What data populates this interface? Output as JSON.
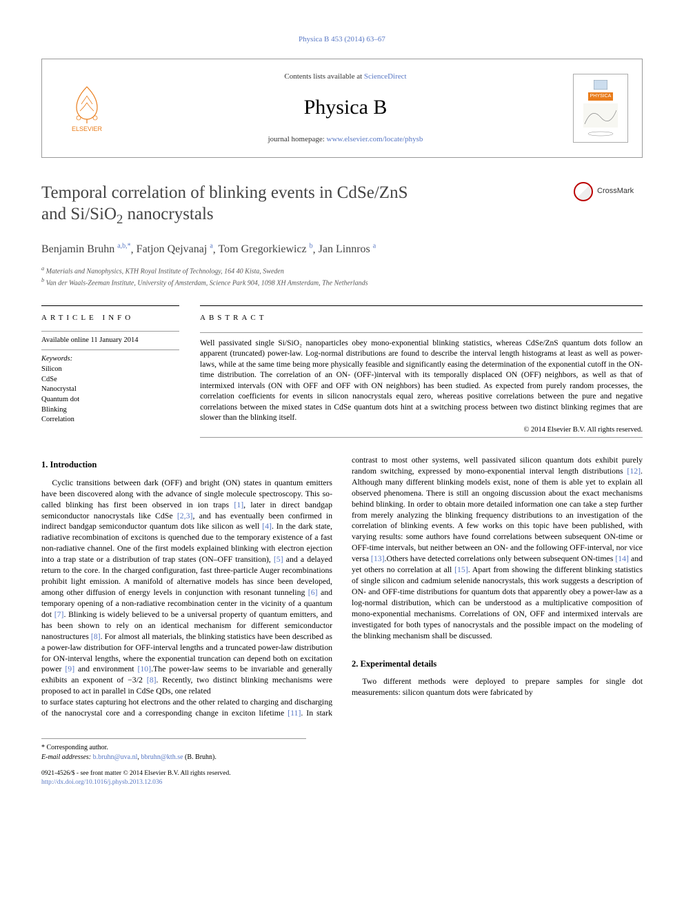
{
  "top_link": {
    "text": "Physica B 453 (2014) 63–67",
    "color": "#5978c4"
  },
  "header": {
    "contents_prefix": "Contents lists available at ",
    "contents_link": "ScienceDirect",
    "journal_name": "Physica B",
    "homepage_prefix": "journal homepage: ",
    "homepage_link": "www.elsevier.com/locate/physb",
    "publisher": "ELSEVIER",
    "cover_badge": "PHYSICA"
  },
  "crossmark_label": "CrossMark",
  "title_lines": [
    "Temporal correlation of blinking events in CdSe/ZnS",
    "and Si/SiO"
  ],
  "title_sub": "2",
  "title_suffix": " nanocrystals",
  "authors_html": "Benjamin Bruhn",
  "authors": [
    {
      "name": "Benjamin Bruhn",
      "sup": "a,b,",
      "ast": "*"
    },
    {
      "name": "Fatjon Qejvanaj",
      "sup": "a"
    },
    {
      "name": "Tom Gregorkiewicz",
      "sup": "b"
    },
    {
      "name": "Jan Linnros",
      "sup": "a"
    }
  ],
  "affiliations": [
    {
      "sup": "a",
      "text": "Materials and Nanophysics, KTH Royal Institute of Technology, 164 40 Kista, Sweden"
    },
    {
      "sup": "b",
      "text": "Van der Waals-Zeeman Institute, University of Amsterdam, Science Park 904, 1098 XH Amsterdam, The Netherlands"
    }
  ],
  "article_info": {
    "heading": "ARTICLE INFO",
    "available": "Available online 11 January 2014",
    "kw_label": "Keywords:",
    "keywords": [
      "Silicon",
      "CdSe",
      "Nanocrystal",
      "Quantum dot",
      "Blinking",
      "Correlation"
    ]
  },
  "abstract": {
    "heading": "ABSTRACT",
    "text": "Well passivated single Si/SiO₂ nanoparticles obey mono-exponential blinking statistics, whereas CdSe/ZnS quantum dots follow an apparent (truncated) power-law. Log-normal distributions are found to describe the interval length histograms at least as well as power-laws, while at the same time being more physically feasible and significantly easing the determination of the exponential cutoff in the ON-time distribution. The correlation of an ON- (OFF-)interval with its temporally displaced ON (OFF) neighbors, as well as that of intermixed intervals (ON with OFF and OFF with ON neighbors) has been studied. As expected from purely random processes, the correlation coefficients for events in silicon nanocrystals equal zero, whereas positive correlations between the pure and negative correlations between the mixed states in CdSe quantum dots hint at a switching process between two distinct blinking regimes that are slower than the blinking itself.",
    "copyright": "© 2014 Elsevier B.V. All rights reserved."
  },
  "sections": {
    "intro_heading": "1.  Introduction",
    "intro_body": "Cyclic transitions between dark (OFF) and bright (ON) states in quantum emitters have been discovered along with the advance of single molecule spectroscopy. This so-called blinking has first been observed in ion traps [1], later in direct bandgap semiconductor nanocrystals like CdSe [2,3], and has eventually been confirmed in indirect bandgap semiconductor quantum dots like silicon as well [4]. In the dark state, radiative recombination of excitons is quenched due to the temporary existence of a fast non-radiative channel. One of the first models explained blinking with electron ejection into a trap state or a distribution of trap states (ON–OFF transition), [5] and a delayed return to the core. In the charged configuration, fast three-particle Auger recombinations prohibit light emission. A manifold of alternative models has since been developed, among other diffusion of energy levels in conjunction with resonant tunneling [6] and temporary opening of a non-radiative recombination center in the vicinity of a quantum dot [7]. Blinking is widely believed to be a universal property of quantum emitters, and has been shown to rely on an identical mechanism for different semiconductor nanostructures [8]. For almost all materials, the blinking statistics have been described as a power-law distribution for OFF-interval lengths and a truncated power-law distribution for ON-interval lengths, where the exponential truncation can depend both on excitation power [9] and environment [10].The power-law seems to be invariable and generally exhibits an exponent of −3/2 [8]. Recently, two distinct blinking mechanisms were proposed to act in parallel in CdSe QDs, one related",
    "col2_para": "to surface states capturing hot electrons and the other related to charging and discharging of the nanocrystal core and a corresponding change in exciton lifetime [11]. In stark contrast to most other systems, well passivated silicon quantum dots exhibit purely random switching, expressed by mono-exponential interval length distributions [12]. Although many different blinking models exist, none of them is able yet to explain all observed phenomena. There is still an ongoing discussion about the exact mechanisms behind blinking. In order to obtain more detailed information one can take a step further from merely analyzing the blinking frequency distributions to an investigation of the correlation of blinking events. A few works on this topic have been published, with varying results: some authors have found correlations between subsequent ON-time or OFF-time intervals, but neither between an ON- and the following OFF-interval, nor vice versa [13].Others have detected correlations only between subsequent ON-times [14] and yet others no correlation at all [15]. Apart from showing the different blinking statistics of single silicon and cadmium selenide nanocrystals, this work suggests a description of ON- and OFF-time distributions for quantum dots that apparently obey a power-law as a log-normal distribution, which can be understood as a multiplicative composition of mono-exponential mechanisms. Correlations of ON, OFF and intermixed intervals are investigated for both types of nanocrystals and the possible impact on the modeling of the blinking mechanism shall be discussed.",
    "exp_heading": "2.  Experimental details",
    "exp_body": "Two different methods were deployed to prepare samples for single dot measurements: silicon quantum dots were fabricated by"
  },
  "footnotes": {
    "corr": "* Corresponding author.",
    "email_label": "E-mail addresses: ",
    "emails": [
      "b.bruhn@uva.nl",
      "bbruhn@kth.se"
    ],
    "email_suffix": " (B. Bruhn)."
  },
  "bottom": {
    "issn": "0921-4526/$ - see front matter © 2014 Elsevier B.V. All rights reserved.",
    "doi": "http://dx.doi.org/10.1016/j.physb.2013.12.036"
  },
  "colors": {
    "link": "#5978c4",
    "orange": "#e97c1a",
    "text": "#000000",
    "gray_border": "#999999"
  }
}
